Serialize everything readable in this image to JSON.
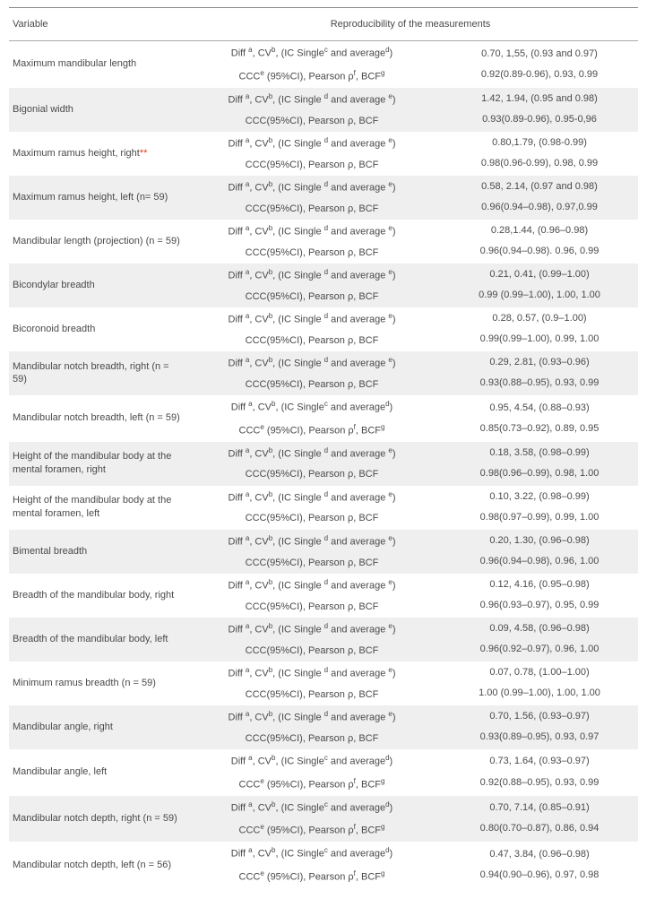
{
  "header": {
    "variable": "Variable",
    "reproducibility": "Reproducibility of the measurements"
  },
  "labels": {
    "diff_d_e": "Diff <sup>a</sup>, CV<sup>b</sup>, (IC Single <sup>d</sup> and average <sup>e</sup>)",
    "diff_c_d": "Diff <sup>a</sup>, CV<sup>b</sup>, (IC Single<sup>c</sup> and average<sup>d</sup>)",
    "ccc_plain": "CCC(95%CI),  Pearson ρ, BCF",
    "ccc_e": "CCC<sup>e</sup> (95%CI),  Pearson ρ<sup>f</sup>, BCF<sup>g</sup>"
  },
  "rows": [
    {
      "variable": "Maximum mandibular length",
      "mid1": "diff_c_d",
      "mid2": "ccc_e",
      "v1": "0.70, 1,55, (0.93 and 0.97)",
      "v2": "0.92(0.89-0.96), 0.93, 0.99"
    },
    {
      "variable": "Bigonial width",
      "mid1": "diff_d_e",
      "mid2": "ccc_plain",
      "v1": "1.42, 1.94, (0.95 and 0.98)",
      "v2": "0.93(0.89-0.96), 0.95-0,96"
    },
    {
      "variable": "Maximum ramus height, right",
      "star": true,
      "mid1": "diff_d_e",
      "mid2": "ccc_plain",
      "v1": "0.80,1.79, (0.98-0.99)",
      "v2": "0.98(0.96-0.99), 0.98, 0.99"
    },
    {
      "variable": "Maximum ramus height, left (n= 59)",
      "mid1": "diff_d_e",
      "mid2": "ccc_plain",
      "v1": "0.58, 2.14, (0.97 and 0.98)",
      "v2": "0.96(0.94–0.98), 0.97,0.99"
    },
    {
      "variable": "Mandibular length (projection) (n = 59)",
      "mid1": "diff_d_e",
      "mid2": "ccc_plain",
      "v1": "0.28,1.44, (0.96–0.98)",
      "v2": "0.96(0.94–0.98). 0.96, 0.99"
    },
    {
      "variable": "Bicondylar breadth",
      "mid1": "diff_d_e",
      "mid2": "ccc_plain",
      "v1": "0.21, 0.41, (0.99–1.00)",
      "v2": "0.99 (0.99–1.00), 1.00, 1.00"
    },
    {
      "variable": "Bicoronoid breadth",
      "mid1": "diff_d_e",
      "mid2": "ccc_plain",
      "v1": "0.28, 0.57, (0.9–1.00)",
      "v2": "0.99(0.99–1.00), 0.99, 1.00"
    },
    {
      "variable": "Mandibular notch breadth, right (n = 59)",
      "mid1": "diff_d_e",
      "mid2": "ccc_plain",
      "v1": "0.29, 2.81, (0.93–0.96)",
      "v2": "0.93(0.88–0.95), 0.93, 0.99"
    },
    {
      "variable": "Mandibular notch breadth, left (n = 59)",
      "mid1": "diff_c_d",
      "mid2": "ccc_e",
      "v1": "0.95, 4.54, (0.88–0.93)",
      "v2": "0.85(0.73–0.92), 0.89, 0.95"
    },
    {
      "variable": "Height of the mandibular body at the mental foramen, right",
      "mid1": "diff_d_e",
      "mid2": "ccc_plain",
      "v1": "0.18, 3.58, (0.98–0.99)",
      "v2": "0.98(0.96–0.99), 0.98, 1.00"
    },
    {
      "variable": "Height of the mandibular body at the mental foramen, left",
      "mid1": "diff_d_e",
      "mid2": "ccc_plain",
      "v1": "0.10, 3.22, (0.98–0.99)",
      "v2": "0.98(0.97–0.99), 0.99, 1.00"
    },
    {
      "variable": "Bimental breadth",
      "mid1": "diff_d_e",
      "mid2": "ccc_plain",
      "v1": "0.20, 1.30, (0.96–0.98)",
      "v2": "0.96(0.94–0.98), 0.96, 1.00"
    },
    {
      "variable": "Breadth of the mandibular body, right",
      "mid1": "diff_d_e",
      "mid2": "ccc_plain",
      "v1": "0.12, 4.16, (0.95–0.98)",
      "v2": "0.96(0.93–0.97), 0.95, 0.99"
    },
    {
      "variable": "Breadth of the mandibular body, left",
      "mid1": "diff_d_e",
      "mid2": "ccc_plain",
      "v1": "0.09, 4.58, (0.96–0.98)",
      "v2": "0.96(0.92–0.97), 0.96, 1.00"
    },
    {
      "variable": "Minimum ramus breadth (n = 59)",
      "mid1": "diff_d_e",
      "mid2": "ccc_plain",
      "v1": "0.07, 0.78, (1.00–1.00)",
      "v2": "1.00 (0.99–1.00), 1.00, 1.00"
    },
    {
      "variable": "Mandibular angle, right",
      "mid1": "diff_d_e",
      "mid2": "ccc_plain",
      "v1": "0.70, 1.56, (0.93–0.97)",
      "v2": "0.93(0.89–0.95), 0.93, 0.97"
    },
    {
      "variable": "Mandibular angle, left",
      "mid1": "diff_c_d",
      "mid2": "ccc_e",
      "v1": "0.73, 1.64, (0.93–0.97)",
      "v2": "0.92(0.88–0.95), 0.93, 0.99"
    },
    {
      "variable": "Mandibular notch depth, right (n = 59)",
      "mid1": "diff_c_d",
      "mid2": "ccc_e",
      "v1": "0.70, 7.14, (0.85–0.91)",
      "v2": "0.80(0.70–0.87), 0.86, 0.94"
    },
    {
      "variable": "Mandibular notch depth, left (n = 56)",
      "mid1": "diff_c_d",
      "mid2": "ccc_e",
      "v1": "0.47, 3.84, (0.96–0.98)",
      "v2": "0.94(0.90–0.96), 0.97, 0.98"
    }
  ],
  "colors": {
    "bg_even": "#ffffff",
    "bg_odd": "#efefef",
    "text": "#4a4a4a",
    "star": "#e03c1a"
  }
}
